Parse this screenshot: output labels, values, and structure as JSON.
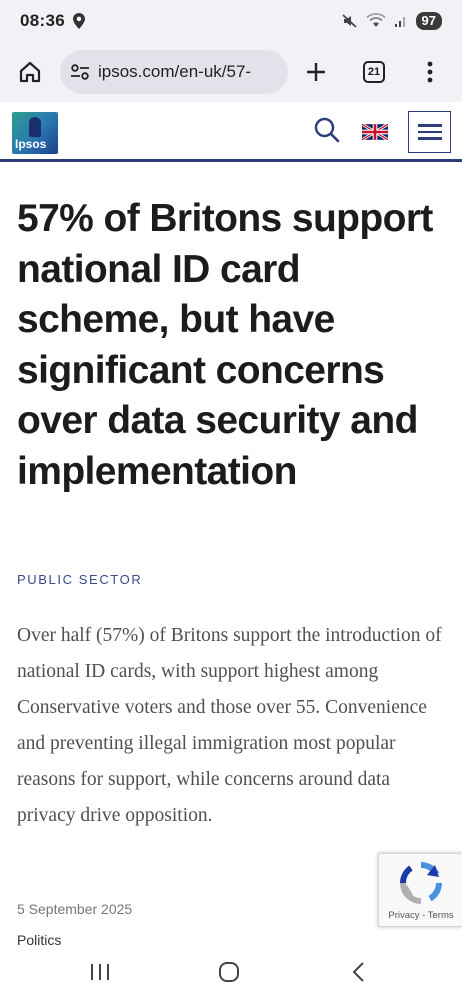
{
  "status_bar": {
    "time": "08:36",
    "battery": "97",
    "icons": [
      "location-icon",
      "mute-icon",
      "wifi-icon",
      "signal-icon"
    ]
  },
  "browser": {
    "url": "ipsos.com/en-uk/57-",
    "tab_count": "21",
    "icons": [
      "home-icon",
      "site-settings-icon",
      "new-tab-icon",
      "tabs-icon",
      "more-menu-icon"
    ]
  },
  "site": {
    "logo_text": "Ipsos",
    "icons": [
      "search-icon",
      "uk-flag-icon",
      "menu-icon"
    ],
    "colors": {
      "navy": "#2b3d7a",
      "teal": "#2f9e8f"
    }
  },
  "article": {
    "headline": "57% of Britons support national ID card scheme, but have significant concerns over data security and implementation",
    "category": "PUBLIC SECTOR",
    "summary": "Over half (57%) of Britons support the introduction of national ID cards, with support highest among Conservative voters and those over 55. Convenience and preventing illegal immigration most popular reasons for support, while concerns around data privacy drive opposition.",
    "date": "5 September 2025",
    "tag": "Politics"
  },
  "recaptcha": {
    "links": "Privacy - Terms"
  },
  "nav": {
    "icons": [
      "recent-apps-icon",
      "home-nav-icon",
      "back-icon"
    ]
  }
}
